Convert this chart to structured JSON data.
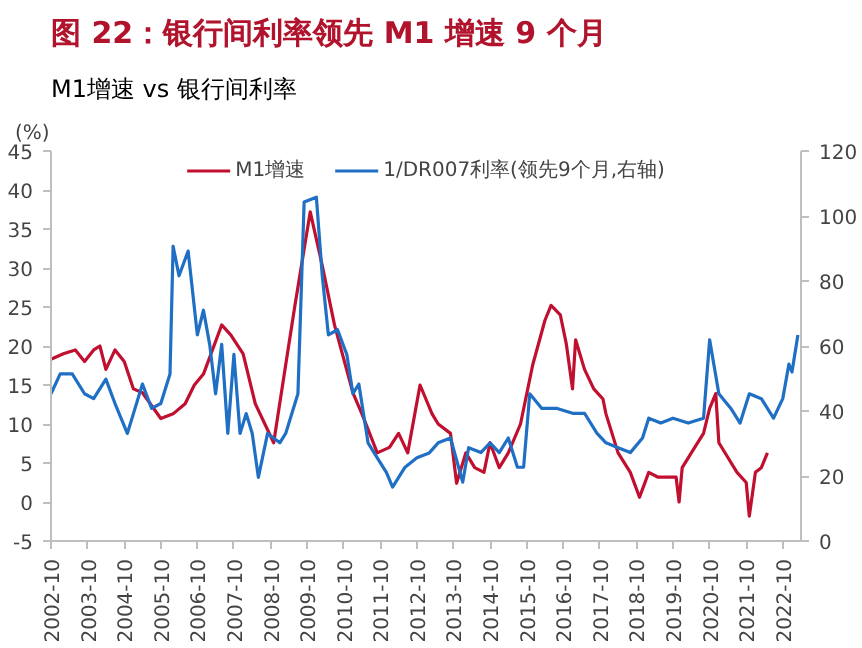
{
  "chart_data": {
    "type": "line",
    "title": "图 22：银行间利率领先 M1 增速 9 个月",
    "subtitle": "M1增速 vs 银行间利率",
    "ylabel": "(%)",
    "xlim": [
      "2002-10",
      "2023-04"
    ],
    "xticks": [
      "2002-10",
      "2003-10",
      "2004-10",
      "2005-10",
      "2006-10",
      "2007-10",
      "2008-10",
      "2009-10",
      "2010-10",
      "2011-10",
      "2012-10",
      "2013-10",
      "2014-10",
      "2015-10",
      "2016-10",
      "2017-10",
      "2018-10",
      "2019-10",
      "2020-10",
      "2021-10",
      "2022-10"
    ],
    "ylim": [
      -5,
      45
    ],
    "yticks": [
      -5,
      0,
      5,
      10,
      15,
      20,
      25,
      30,
      35,
      40,
      45
    ],
    "y2lim": [
      0,
      120
    ],
    "y2ticks": [
      0,
      20,
      40,
      60,
      80,
      100,
      120
    ],
    "grid": false,
    "legend": "top",
    "line_style": "solid",
    "marker": "none",
    "series": [
      {
        "name": "M1增速",
        "color": "#c00f2f",
        "x": [
          "2002-10",
          "2003-02",
          "2003-06",
          "2003-09",
          "2003-12",
          "2004-02",
          "2004-04",
          "2004-07",
          "2004-10",
          "2005-01",
          "2005-04",
          "2005-10",
          "2006-02",
          "2006-06",
          "2006-09",
          "2006-12",
          "2007-06",
          "2007-09",
          "2008-01",
          "2008-05",
          "2008-11",
          "2009-03",
          "2009-06",
          "2009-11",
          "2010-03",
          "2010-07",
          "2011-01",
          "2011-04",
          "2011-09",
          "2012-01",
          "2012-04",
          "2012-07",
          "2012-11",
          "2013-03",
          "2013-05",
          "2013-09",
          "2013-11",
          "2014-02",
          "2014-05",
          "2014-08",
          "2014-10",
          "2015-01",
          "2015-04",
          "2015-08",
          "2015-12",
          "2016-04",
          "2016-06",
          "2016-09",
          "2016-11",
          "2017-01",
          "2017-02",
          "2017-05",
          "2017-08",
          "2017-11",
          "2017-12",
          "2018-04",
          "2018-08",
          "2018-11",
          "2019-02",
          "2019-05",
          "2019-08",
          "2019-11",
          "2019-12",
          "2020-01",
          "2020-04",
          "2020-08",
          "2020-10",
          "2020-12",
          "2021-01",
          "2021-04",
          "2021-07",
          "2021-10",
          "2021-11",
          "2022-01",
          "2022-03",
          "2022-05"
        ],
        "values": [
          18.3,
          19,
          19.5,
          18,
          19.5,
          20,
          17,
          19.5,
          18,
          14.5,
          14,
          10.7,
          11.3,
          12.6,
          15,
          16.4,
          22.7,
          21.4,
          19,
          12.6,
          7.6,
          17.6,
          25.2,
          37.2,
          30.3,
          22.7,
          14,
          11.3,
          6.3,
          7,
          8.8,
          6.3,
          15,
          11.3,
          10,
          8.8,
          2.4,
          6.3,
          4.4,
          3.8,
          7.6,
          4.4,
          6.3,
          10,
          17.6,
          23.3,
          25.2,
          24,
          20.2,
          14.5,
          20.8,
          17,
          14.5,
          13.2,
          11.3,
          6.3,
          3.8,
          0.6,
          3.8,
          3.2,
          3.2,
          3.2,
          0,
          4.4,
          6.3,
          8.8,
          12,
          13.9,
          7.6,
          5.7,
          3.8,
          2.5,
          -1.8,
          3.8,
          4.4,
          6.3
        ]
      },
      {
        "name": "1/DR007利率(领先9个月,右轴)",
        "color": "#1f6fc4",
        "axis": "y2",
        "x": [
          "2002-10",
          "2003-01",
          "2003-05",
          "2003-09",
          "2003-12",
          "2004-04",
          "2004-07",
          "2004-11",
          "2005-01",
          "2005-04",
          "2005-07",
          "2005-10",
          "2006-01",
          "2006-02",
          "2006-04",
          "2006-07",
          "2006-10",
          "2006-12",
          "2007-02",
          "2007-04",
          "2007-06",
          "2007-08",
          "2007-10",
          "2007-12",
          "2008-02",
          "2008-04",
          "2008-06",
          "2008-09",
          "2009-01",
          "2009-03",
          "2009-07",
          "2009-09",
          "2010-01",
          "2010-03",
          "2010-05",
          "2010-08",
          "2010-11",
          "2011-01",
          "2011-03",
          "2011-06",
          "2011-09",
          "2011-12",
          "2012-02",
          "2012-06",
          "2012-10",
          "2013-02",
          "2013-05",
          "2013-09",
          "2014-01",
          "2014-03",
          "2014-07",
          "2014-10",
          "2015-01",
          "2015-04",
          "2015-07",
          "2015-09",
          "2015-11",
          "2016-03",
          "2016-08",
          "2017-01",
          "2017-05",
          "2017-09",
          "2017-12",
          "2018-04",
          "2018-08",
          "2018-12",
          "2019-02",
          "2019-06",
          "2019-10",
          "2020-03",
          "2020-08",
          "2020-10",
          "2021-01",
          "2021-05",
          "2021-08",
          "2021-11",
          "2022-03",
          "2022-07",
          "2022-10",
          "2022-12",
          "2023-01",
          "2023-03"
        ],
        "values": [
          45.3,
          51.4,
          51.4,
          45.3,
          43.8,
          49.8,
          42.3,
          33.1,
          39.2,
          48.3,
          40.8,
          42.3,
          51.4,
          90.7,
          81.6,
          89.2,
          63.4,
          71,
          60.5,
          45.3,
          60.5,
          33.1,
          57.4,
          33.1,
          39.2,
          33.1,
          19.6,
          33.1,
          30.2,
          33.1,
          45.3,
          104.3,
          105.8,
          81.6,
          63.4,
          65,
          57.4,
          45.3,
          48.3,
          30.2,
          25.6,
          21.1,
          16.6,
          22.6,
          25.6,
          27.1,
          30.2,
          31.7,
          18.1,
          28.7,
          27.2,
          30.2,
          27.2,
          31.7,
          22.7,
          22.7,
          45.3,
          40.8,
          40.8,
          39.3,
          39.3,
          33.2,
          30.2,
          28.7,
          27.2,
          31.7,
          37.8,
          36.3,
          37.8,
          36.3,
          37.8,
          61.9,
          45.3,
          40.8,
          36.3,
          45.3,
          43.8,
          37.8,
          43.8,
          54.4,
          52,
          63.4
        ]
      }
    ]
  }
}
